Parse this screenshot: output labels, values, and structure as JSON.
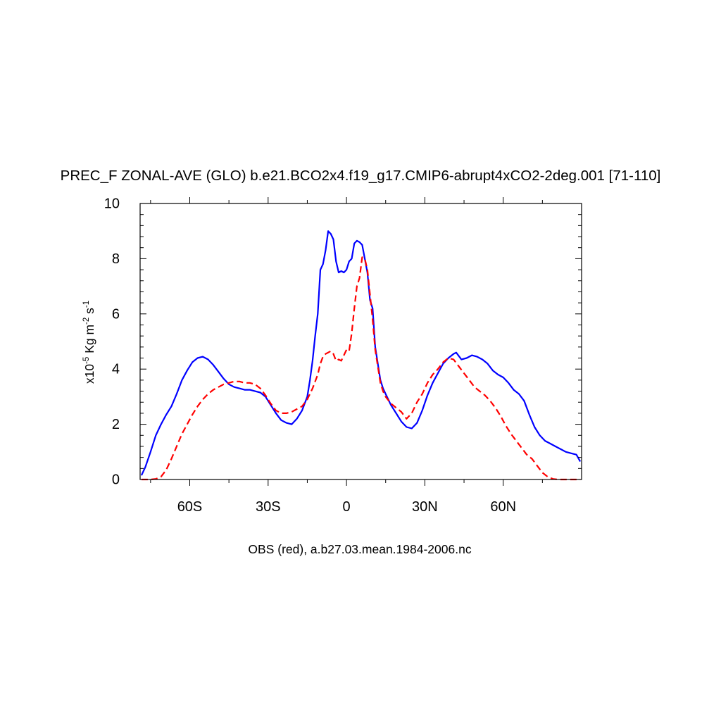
{
  "chart_data": {
    "type": "line",
    "title": "PREC_F ZONAL-AVE (GLO) b.e21.BCO2x4.f19_g17.CMIP6-abrupt4xCO2-2deg.001 [71-110]",
    "ylabel": {
      "base": "x10",
      "exp1": "-5",
      "mid": " Kg m",
      "exp2": "-2",
      "mid2": " s",
      "exp3": "-1"
    },
    "xlabel": "OBS (red), a.b27.03.mean.1984-2006.nc",
    "xlim": [
      -79,
      90
    ],
    "ylim": [
      0,
      10
    ],
    "y_ticks": [
      0,
      2,
      4,
      6,
      8,
      10
    ],
    "x_ticks": [
      {
        "value": -60,
        "label": "60S"
      },
      {
        "value": -30,
        "label": "30S"
      },
      {
        "value": 0,
        "label": "0"
      },
      {
        "value": 30,
        "label": "30N"
      },
      {
        "value": 60,
        "label": "60N"
      }
    ],
    "colors": {
      "model": "#0000ff",
      "obs": "#ff0000"
    },
    "series": [
      {
        "style": "solid",
        "color": "#0000ff",
        "points": [
          [
            -78.5,
            0.15
          ],
          [
            -77,
            0.45
          ],
          [
            -75,
            1.0
          ],
          [
            -73,
            1.6
          ],
          [
            -71,
            2.0
          ],
          [
            -69,
            2.35
          ],
          [
            -67,
            2.65
          ],
          [
            -65,
            3.1
          ],
          [
            -63,
            3.6
          ],
          [
            -61,
            3.95
          ],
          [
            -59,
            4.25
          ],
          [
            -57,
            4.4
          ],
          [
            -55,
            4.45
          ],
          [
            -53,
            4.35
          ],
          [
            -51,
            4.15
          ],
          [
            -49,
            3.9
          ],
          [
            -47,
            3.65
          ],
          [
            -45,
            3.45
          ],
          [
            -43,
            3.35
          ],
          [
            -41,
            3.3
          ],
          [
            -39,
            3.25
          ],
          [
            -37,
            3.25
          ],
          [
            -35,
            3.2
          ],
          [
            -33,
            3.15
          ],
          [
            -31,
            3.0
          ],
          [
            -29,
            2.7
          ],
          [
            -27,
            2.4
          ],
          [
            -25,
            2.15
          ],
          [
            -23,
            2.05
          ],
          [
            -21,
            2.0
          ],
          [
            -19,
            2.2
          ],
          [
            -17,
            2.5
          ],
          [
            -15,
            3.0
          ],
          [
            -14,
            3.6
          ],
          [
            -13,
            4.3
          ],
          [
            -12,
            5.2
          ],
          [
            -11,
            6.0
          ],
          [
            -10,
            7.6
          ],
          [
            -9,
            7.8
          ],
          [
            -8,
            8.3
          ],
          [
            -7,
            9.0
          ],
          [
            -6,
            8.9
          ],
          [
            -5,
            8.7
          ],
          [
            -4,
            7.9
          ],
          [
            -3,
            7.5
          ],
          [
            -2,
            7.55
          ],
          [
            -1,
            7.5
          ],
          [
            0,
            7.6
          ],
          [
            1,
            7.9
          ],
          [
            2,
            8.0
          ],
          [
            3,
            8.55
          ],
          [
            4,
            8.65
          ],
          [
            5,
            8.6
          ],
          [
            6,
            8.5
          ],
          [
            7,
            8.0
          ],
          [
            8,
            7.5
          ],
          [
            9,
            6.5
          ],
          [
            10,
            6.2
          ],
          [
            11,
            4.8
          ],
          [
            12,
            4.2
          ],
          [
            13,
            3.6
          ],
          [
            14,
            3.3
          ],
          [
            15,
            3.1
          ],
          [
            17,
            2.7
          ],
          [
            19,
            2.4
          ],
          [
            21,
            2.1
          ],
          [
            23,
            1.9
          ],
          [
            25,
            1.85
          ],
          [
            27,
            2.05
          ],
          [
            29,
            2.5
          ],
          [
            31,
            3.05
          ],
          [
            33,
            3.5
          ],
          [
            35,
            3.85
          ],
          [
            37,
            4.2
          ],
          [
            39,
            4.4
          ],
          [
            41,
            4.55
          ],
          [
            42,
            4.6
          ],
          [
            44,
            4.35
          ],
          [
            46,
            4.4
          ],
          [
            48,
            4.5
          ],
          [
            50,
            4.45
          ],
          [
            52,
            4.35
          ],
          [
            54,
            4.2
          ],
          [
            56,
            3.95
          ],
          [
            58,
            3.8
          ],
          [
            60,
            3.7
          ],
          [
            62,
            3.5
          ],
          [
            64,
            3.25
          ],
          [
            66,
            3.1
          ],
          [
            68,
            2.85
          ],
          [
            70,
            2.35
          ],
          [
            72,
            1.9
          ],
          [
            74,
            1.6
          ],
          [
            76,
            1.4
          ],
          [
            78,
            1.3
          ],
          [
            80,
            1.2
          ],
          [
            82,
            1.1
          ],
          [
            84,
            1.0
          ],
          [
            86,
            0.95
          ],
          [
            88,
            0.9
          ],
          [
            89.5,
            0.65
          ]
        ]
      },
      {
        "style": "dashed",
        "color": "#ff0000",
        "points": [
          [
            -78.5,
            0.0
          ],
          [
            -75,
            0.0
          ],
          [
            -73,
            0.02
          ],
          [
            -71,
            0.1
          ],
          [
            -69,
            0.35
          ],
          [
            -67,
            0.75
          ],
          [
            -65,
            1.2
          ],
          [
            -63,
            1.65
          ],
          [
            -61,
            2.0
          ],
          [
            -59,
            2.35
          ],
          [
            -57,
            2.65
          ],
          [
            -55,
            2.9
          ],
          [
            -53,
            3.1
          ],
          [
            -51,
            3.25
          ],
          [
            -49,
            3.35
          ],
          [
            -47,
            3.45
          ],
          [
            -45,
            3.5
          ],
          [
            -43,
            3.55
          ],
          [
            -41,
            3.55
          ],
          [
            -39,
            3.5
          ],
          [
            -37,
            3.5
          ],
          [
            -35,
            3.45
          ],
          [
            -33,
            3.3
          ],
          [
            -31,
            3.05
          ],
          [
            -29,
            2.75
          ],
          [
            -27,
            2.5
          ],
          [
            -25,
            2.4
          ],
          [
            -23,
            2.4
          ],
          [
            -21,
            2.45
          ],
          [
            -19,
            2.55
          ],
          [
            -17,
            2.65
          ],
          [
            -15,
            2.9
          ],
          [
            -13,
            3.3
          ],
          [
            -11,
            3.8
          ],
          [
            -10,
            4.2
          ],
          [
            -9,
            4.45
          ],
          [
            -8,
            4.55
          ],
          [
            -7,
            4.6
          ],
          [
            -6,
            4.65
          ],
          [
            -5,
            4.55
          ],
          [
            -4,
            4.3
          ],
          [
            -3,
            4.35
          ],
          [
            -2,
            4.3
          ],
          [
            -1,
            4.5
          ],
          [
            0,
            4.7
          ],
          [
            1,
            4.65
          ],
          [
            2,
            5.3
          ],
          [
            3,
            6.2
          ],
          [
            4,
            7.0
          ],
          [
            5,
            7.3
          ],
          [
            6,
            8.05
          ],
          [
            7,
            8.0
          ],
          [
            8,
            7.6
          ],
          [
            9,
            6.7
          ],
          [
            10,
            5.8
          ],
          [
            11,
            4.7
          ],
          [
            12,
            4.1
          ],
          [
            13,
            3.5
          ],
          [
            14,
            3.2
          ],
          [
            15,
            3.0
          ],
          [
            17,
            2.75
          ],
          [
            19,
            2.6
          ],
          [
            21,
            2.45
          ],
          [
            23,
            2.2
          ],
          [
            25,
            2.4
          ],
          [
            27,
            2.8
          ],
          [
            29,
            3.1
          ],
          [
            31,
            3.5
          ],
          [
            33,
            3.8
          ],
          [
            35,
            4.0
          ],
          [
            37,
            4.25
          ],
          [
            39,
            4.4
          ],
          [
            41,
            4.35
          ],
          [
            43,
            4.1
          ],
          [
            45,
            3.85
          ],
          [
            47,
            3.6
          ],
          [
            49,
            3.35
          ],
          [
            51,
            3.2
          ],
          [
            53,
            3.05
          ],
          [
            55,
            2.85
          ],
          [
            57,
            2.6
          ],
          [
            59,
            2.3
          ],
          [
            61,
            1.95
          ],
          [
            63,
            1.65
          ],
          [
            65,
            1.4
          ],
          [
            67,
            1.15
          ],
          [
            69,
            0.9
          ],
          [
            71,
            0.75
          ],
          [
            73,
            0.5
          ],
          [
            75,
            0.25
          ],
          [
            77,
            0.1
          ],
          [
            79,
            0.02
          ],
          [
            81,
            0.0
          ],
          [
            89.5,
            0.0
          ]
        ]
      }
    ]
  }
}
